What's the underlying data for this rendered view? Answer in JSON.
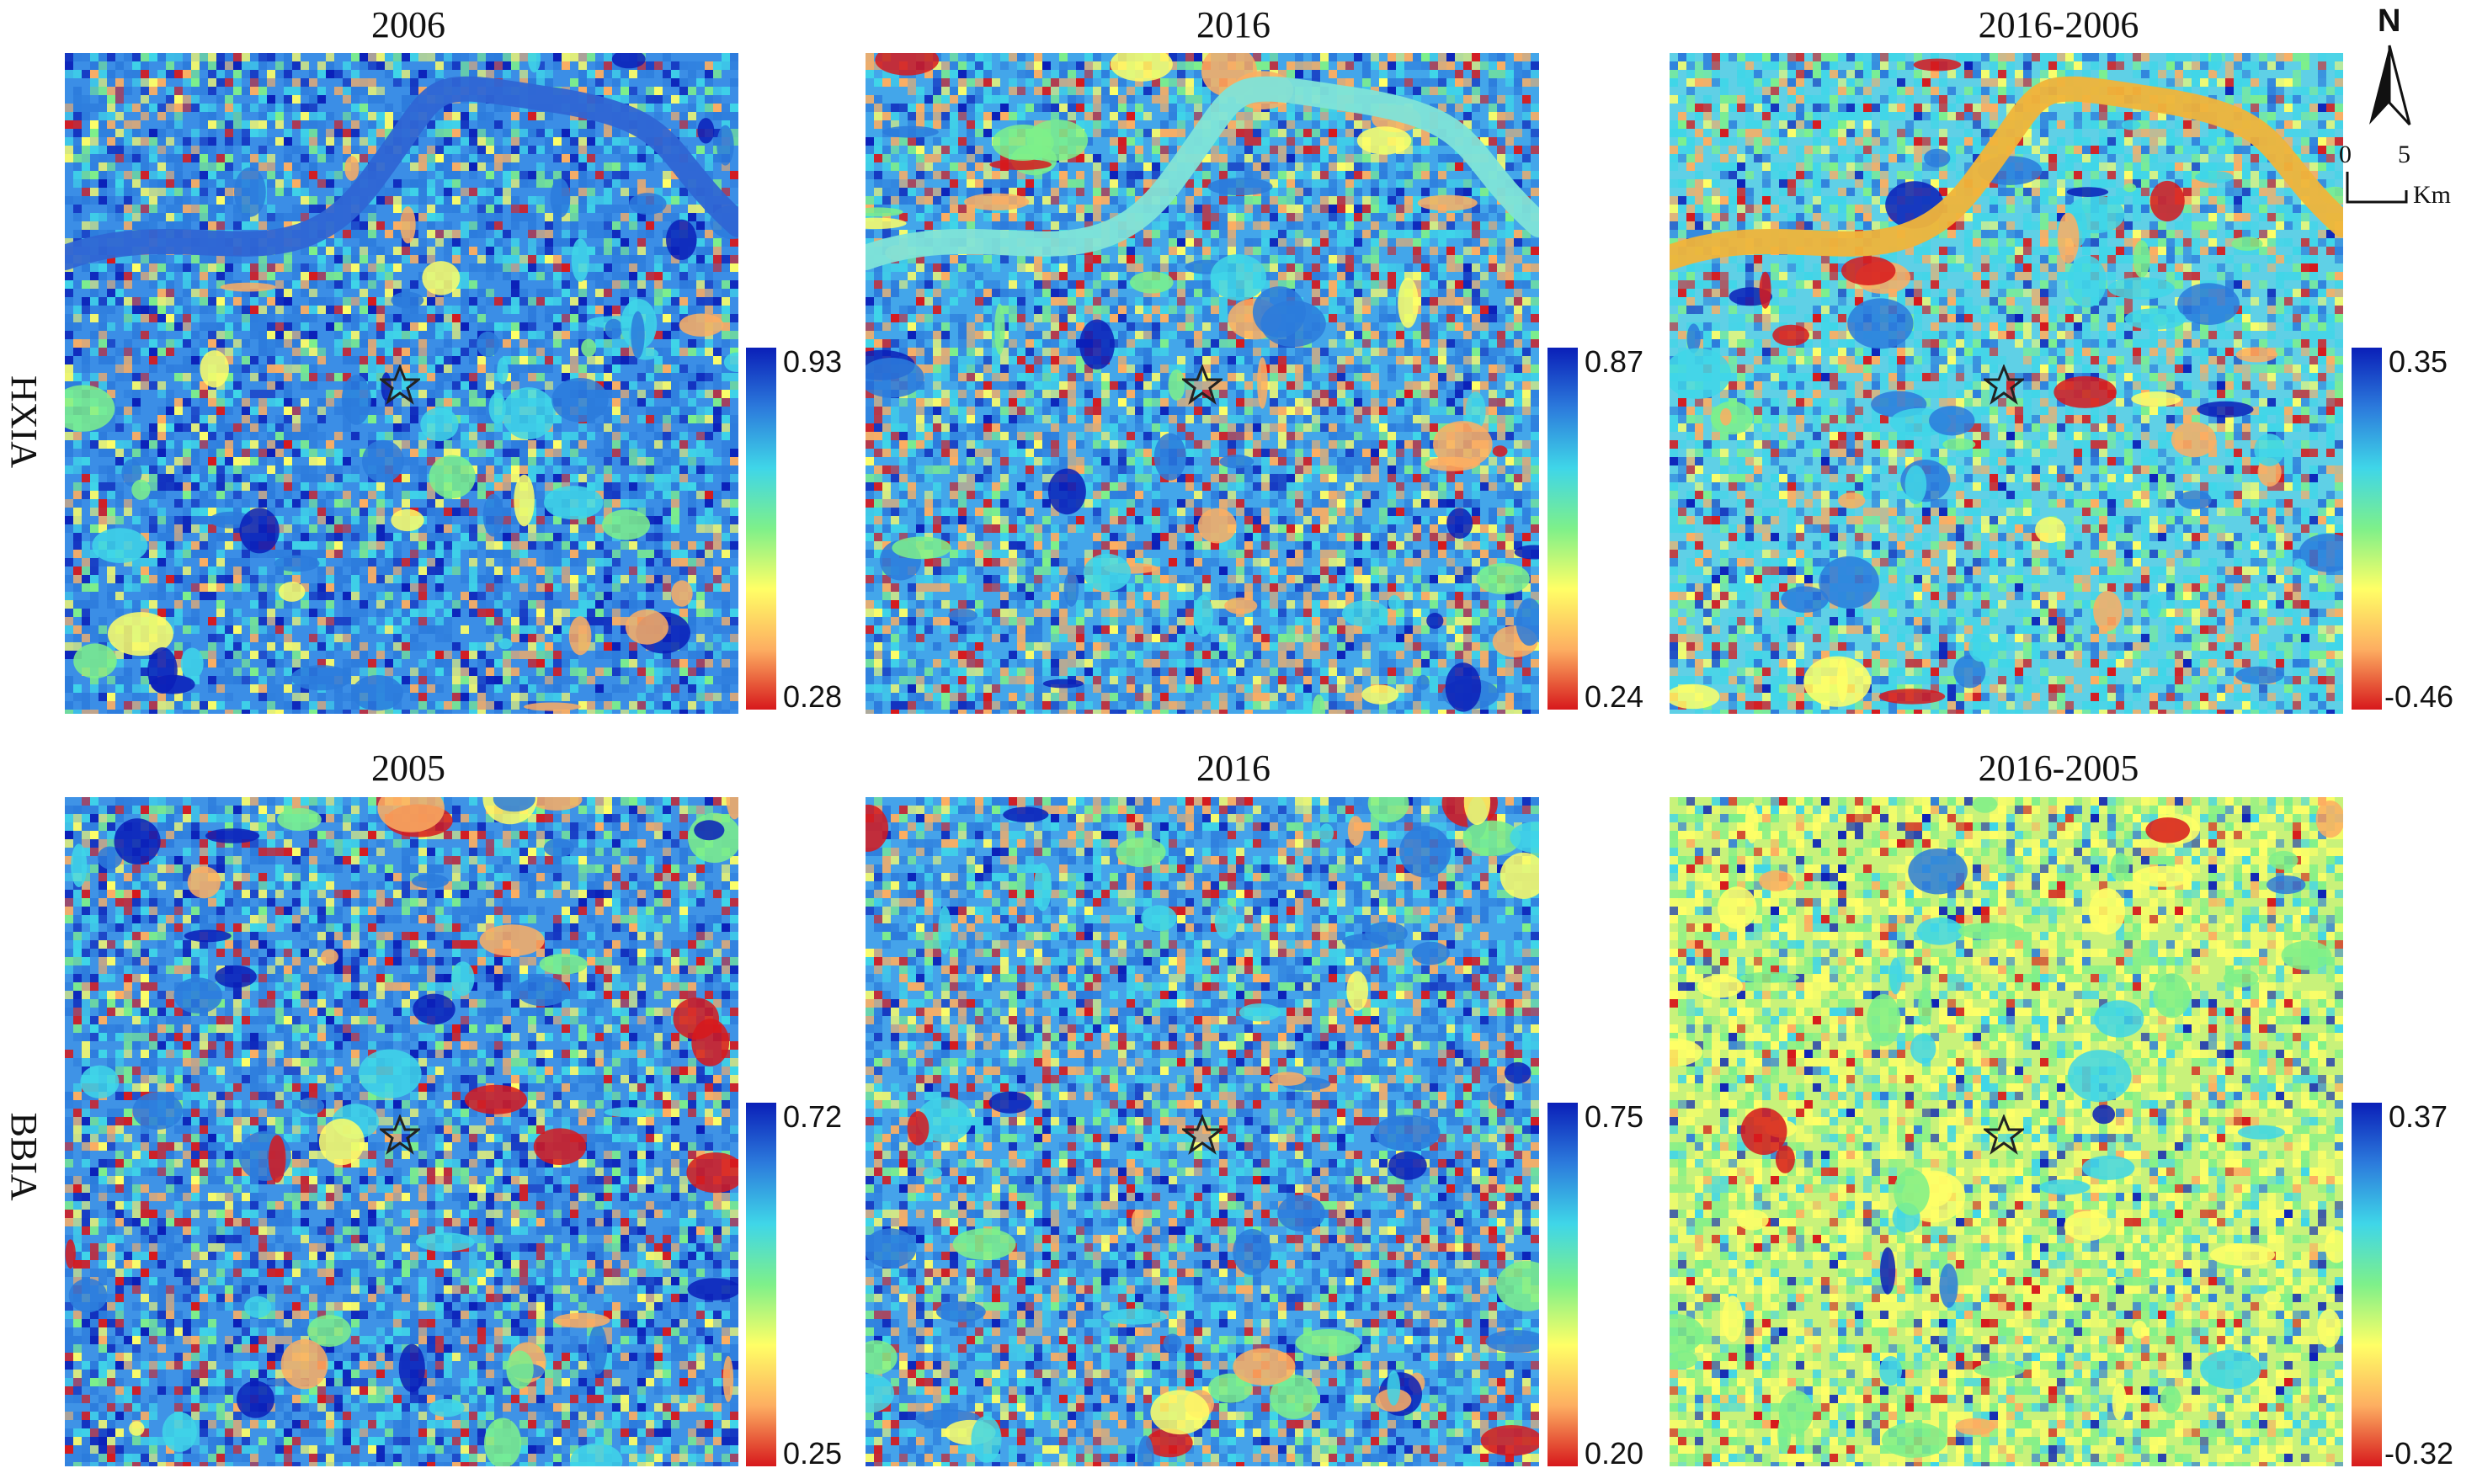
{
  "row_labels": [
    "HXIA",
    "BBIA"
  ],
  "panels": [
    {
      "title": "2006",
      "colorbar": {
        "max": "0.93",
        "min": "0.28"
      }
    },
    {
      "title": "2016",
      "colorbar": {
        "max": "0.87",
        "min": "0.24"
      }
    },
    {
      "title": "2016-2006",
      "colorbar": {
        "max": "0.35",
        "min": "-0.46"
      }
    },
    {
      "title": "2005",
      "colorbar": {
        "max": "0.72",
        "min": "0.25"
      }
    },
    {
      "title": "2016",
      "colorbar": {
        "max": "0.75",
        "min": "0.20"
      }
    },
    {
      "title": "2016-2005",
      "colorbar": {
        "max": "0.37",
        "min": "-0.32"
      }
    }
  ],
  "north_arrow": {
    "label": "N"
  },
  "scale_bar": {
    "tick0": "0",
    "tick1": "5",
    "unit": "Km"
  },
  "colormap": [
    "#d7191c",
    "#fdae61",
    "#ffff66",
    "#7ef08a",
    "#3fd6e8",
    "#2c7bdc",
    "#0a1fb8"
  ]
}
